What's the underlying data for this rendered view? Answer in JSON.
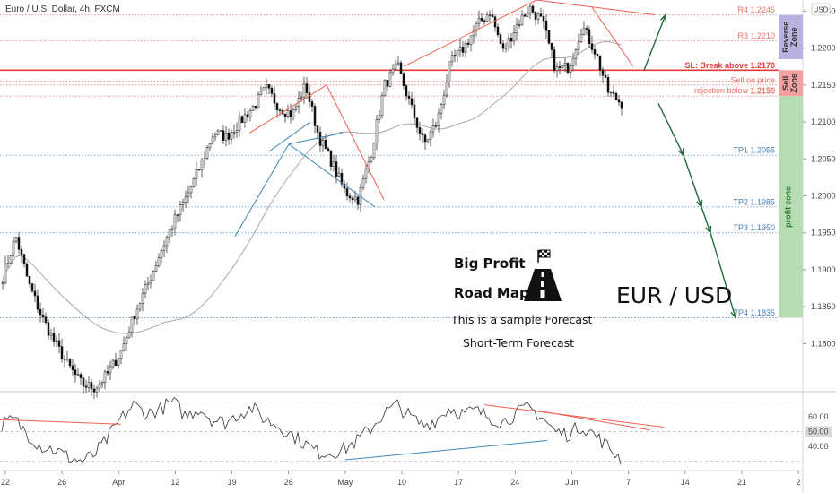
{
  "chart_data": {
    "type": "candlestick",
    "title": "Euro / U.S. Dollar, 4h, FXCM",
    "currency": "USD",
    "y_ticks": [
      "1.22500",
      "1.22000",
      "1.21500",
      "1.21000",
      "1.20500",
      "1.20000",
      "1.19500",
      "1.19000",
      "1.18500",
      "1.18000"
    ],
    "ylim": [
      1.1735,
      1.2265
    ],
    "x_ticks": [
      "22",
      "26",
      "Apr",
      "12",
      "19",
      "26",
      "May",
      "10",
      "17",
      "24",
      "Jun",
      "7",
      "14",
      "21",
      "2"
    ],
    "price_path": [
      1.189,
      1.1945,
      1.188,
      1.1835,
      1.18,
      1.177,
      1.1745,
      1.174,
      1.176,
      1.179,
      1.184,
      1.188,
      1.1925,
      1.1965,
      1.2,
      1.204,
      1.2085,
      1.208,
      1.21,
      1.212,
      1.2145,
      1.212,
      1.211,
      1.215,
      1.208,
      1.2045,
      1.2005,
      1.1995,
      1.206,
      1.215,
      1.2175,
      1.212,
      1.207,
      1.21,
      1.218,
      1.22,
      1.223,
      1.225,
      1.2195,
      1.223,
      1.2255,
      1.2235,
      1.217,
      1.2175,
      1.223,
      1.2195,
      1.214,
      1.2125
    ],
    "levels": [
      {
        "label": "R4 1.2245",
        "value": 1.2245,
        "color": "#e57368"
      },
      {
        "label": "R3 1.2210",
        "value": 1.221,
        "color": "#e57368"
      },
      {
        "label": "SL: Break above 1.2170",
        "value": 1.217,
        "color": "#e53935"
      },
      {
        "label": "Sell on price",
        "value": 1.2155,
        "color": "#e57368"
      },
      {
        "label": "rejection below 1.2150",
        "value": 1.215,
        "color": "#e57368"
      },
      {
        "label": "1.2135",
        "value": 1.2135,
        "color": "#e57368"
      },
      {
        "label": "TP1 1.2055",
        "value": 1.2055,
        "color": "#4a7fb5"
      },
      {
        "label": "TP2 1.1985",
        "value": 1.1985,
        "color": "#4a7fb5"
      },
      {
        "label": "TP3 1.1950",
        "value": 1.195,
        "color": "#4a7fb5"
      },
      {
        "label": "TP4 1.1835",
        "value": 1.1835,
        "color": "#4a7fb5"
      }
    ],
    "zones": [
      {
        "label": "Reverse Zone",
        "from": 1.2245,
        "to": 1.2185,
        "color": "#b9b2e0"
      },
      {
        "label": "Sell Zone",
        "from": 1.217,
        "to": 1.2135,
        "color": "#f4a0a0"
      },
      {
        "label": "profit zone",
        "from": 1.2135,
        "to": 1.1835,
        "color": "#b7dcb3"
      }
    ],
    "forecast_path": [
      1.2125,
      1.2055,
      1.1985,
      1.195,
      1.1835
    ],
    "forecast_target_up": 1.2245,
    "rsi_ticks": [
      "60.00",
      "50.00",
      "40.00"
    ],
    "rsi_current": "50.00",
    "rsi_range": [
      25,
      75
    ]
  },
  "annotations": {
    "big_profit": "Big Profit",
    "road_map": "Road Map",
    "sample": "This is a sample Forecast",
    "short_term": "Short-Term Forecast",
    "pair": "EUR / USD"
  },
  "colors": {
    "bull": "#333333",
    "bear": "#111111",
    "ma": "#a8a8a8",
    "trend_red": "#f06050",
    "trend_blue": "#3e86b5",
    "arrow": "#1e6b3a",
    "sl_line": "#e53935"
  }
}
